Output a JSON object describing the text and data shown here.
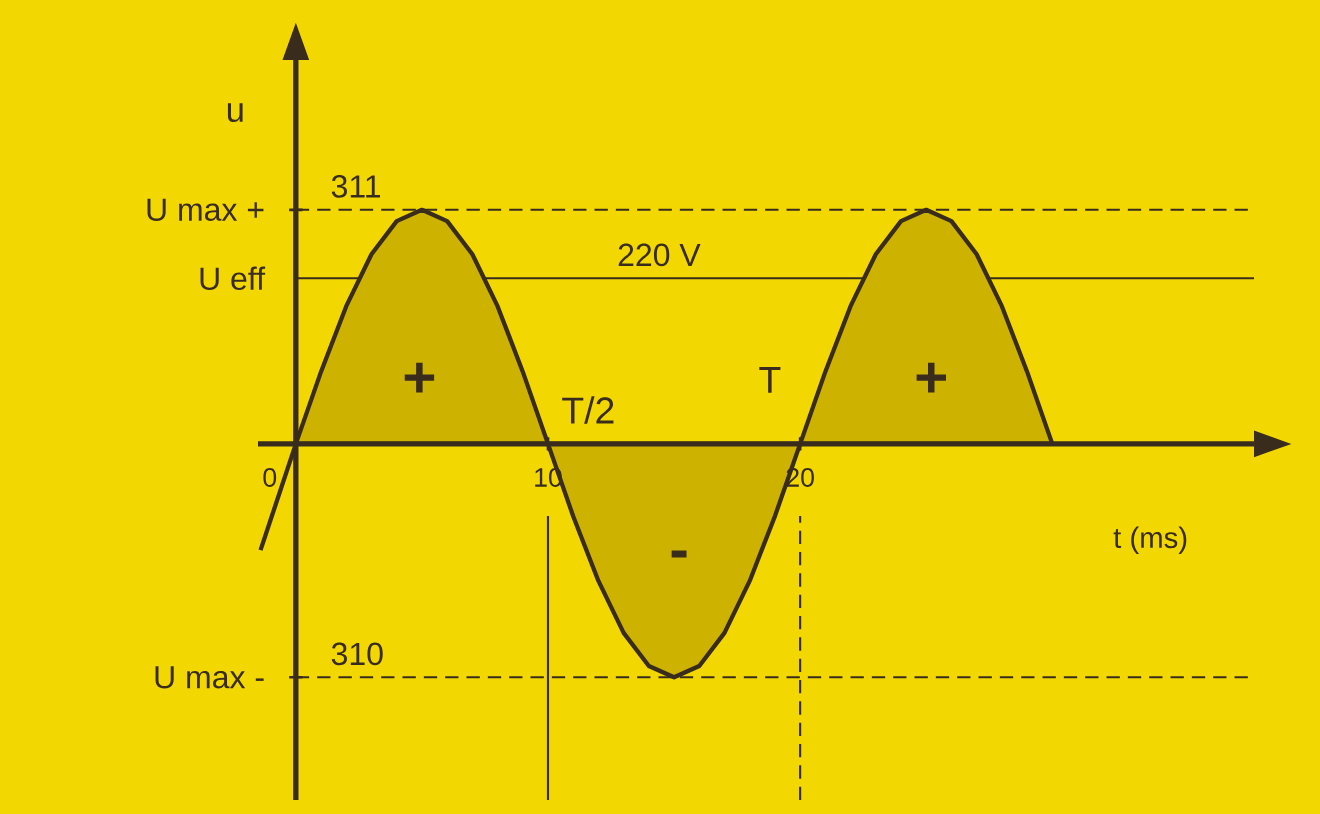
{
  "chart_data": {
    "type": "area",
    "xlabel": "t (ms)",
    "ylabel": "u",
    "series": [
      {
        "color": "#3a2c1c",
        "x": [
          0,
          1,
          2,
          3,
          4,
          5,
          6,
          7,
          8,
          9,
          10,
          11,
          12,
          13,
          14,
          15,
          16,
          17,
          18,
          19,
          20,
          21,
          22,
          23,
          24,
          25,
          26,
          27,
          28,
          29,
          30
        ],
        "values": [
          0,
          96,
          183,
          252,
          296,
          311,
          296,
          252,
          183,
          96,
          0,
          -96,
          -182,
          -251,
          -295,
          -310,
          -295,
          -251,
          -182,
          -96,
          0,
          96,
          183,
          252,
          296,
          311,
          296,
          252,
          183,
          96,
          0
        ]
      },
      {
        "type": "line",
        "color": "#3a2c1c",
        "x": [
          -1.4,
          0
        ],
        "values": [
          -141,
          0
        ]
      }
    ],
    "xlim": [
      -1.5,
      38
    ],
    "ylim": [
      -473,
      510
    ],
    "xticks": [
      0,
      10,
      20
    ],
    "yticks": [
      311,
      {
        "value": -310,
        "label": "310"
      }
    ],
    "ref_lines": [
      {
        "axis": "y",
        "value": 311,
        "label": "U max +",
        "line_style": "dashed"
      },
      {
        "axis": "y",
        "value": 220,
        "label": "U eff",
        "line_style": "solid"
      },
      {
        "axis": "y",
        "value": -310,
        "label": "U max -",
        "line_style": "dashed"
      },
      {
        "axis": "x",
        "value": 10,
        "label": null,
        "line_style": "solid"
      },
      {
        "axis": "x",
        "value": 20,
        "label": null,
        "line_style": "dashed"
      }
    ],
    "annotations": [
      {
        "text": "220 V",
        "x": 14.4,
        "y": 220
      },
      "+",
      "T/2",
      "-",
      "T",
      "+"
    ],
    "marker": "none",
    "line_style": "solid",
    "grid": false
  }
}
